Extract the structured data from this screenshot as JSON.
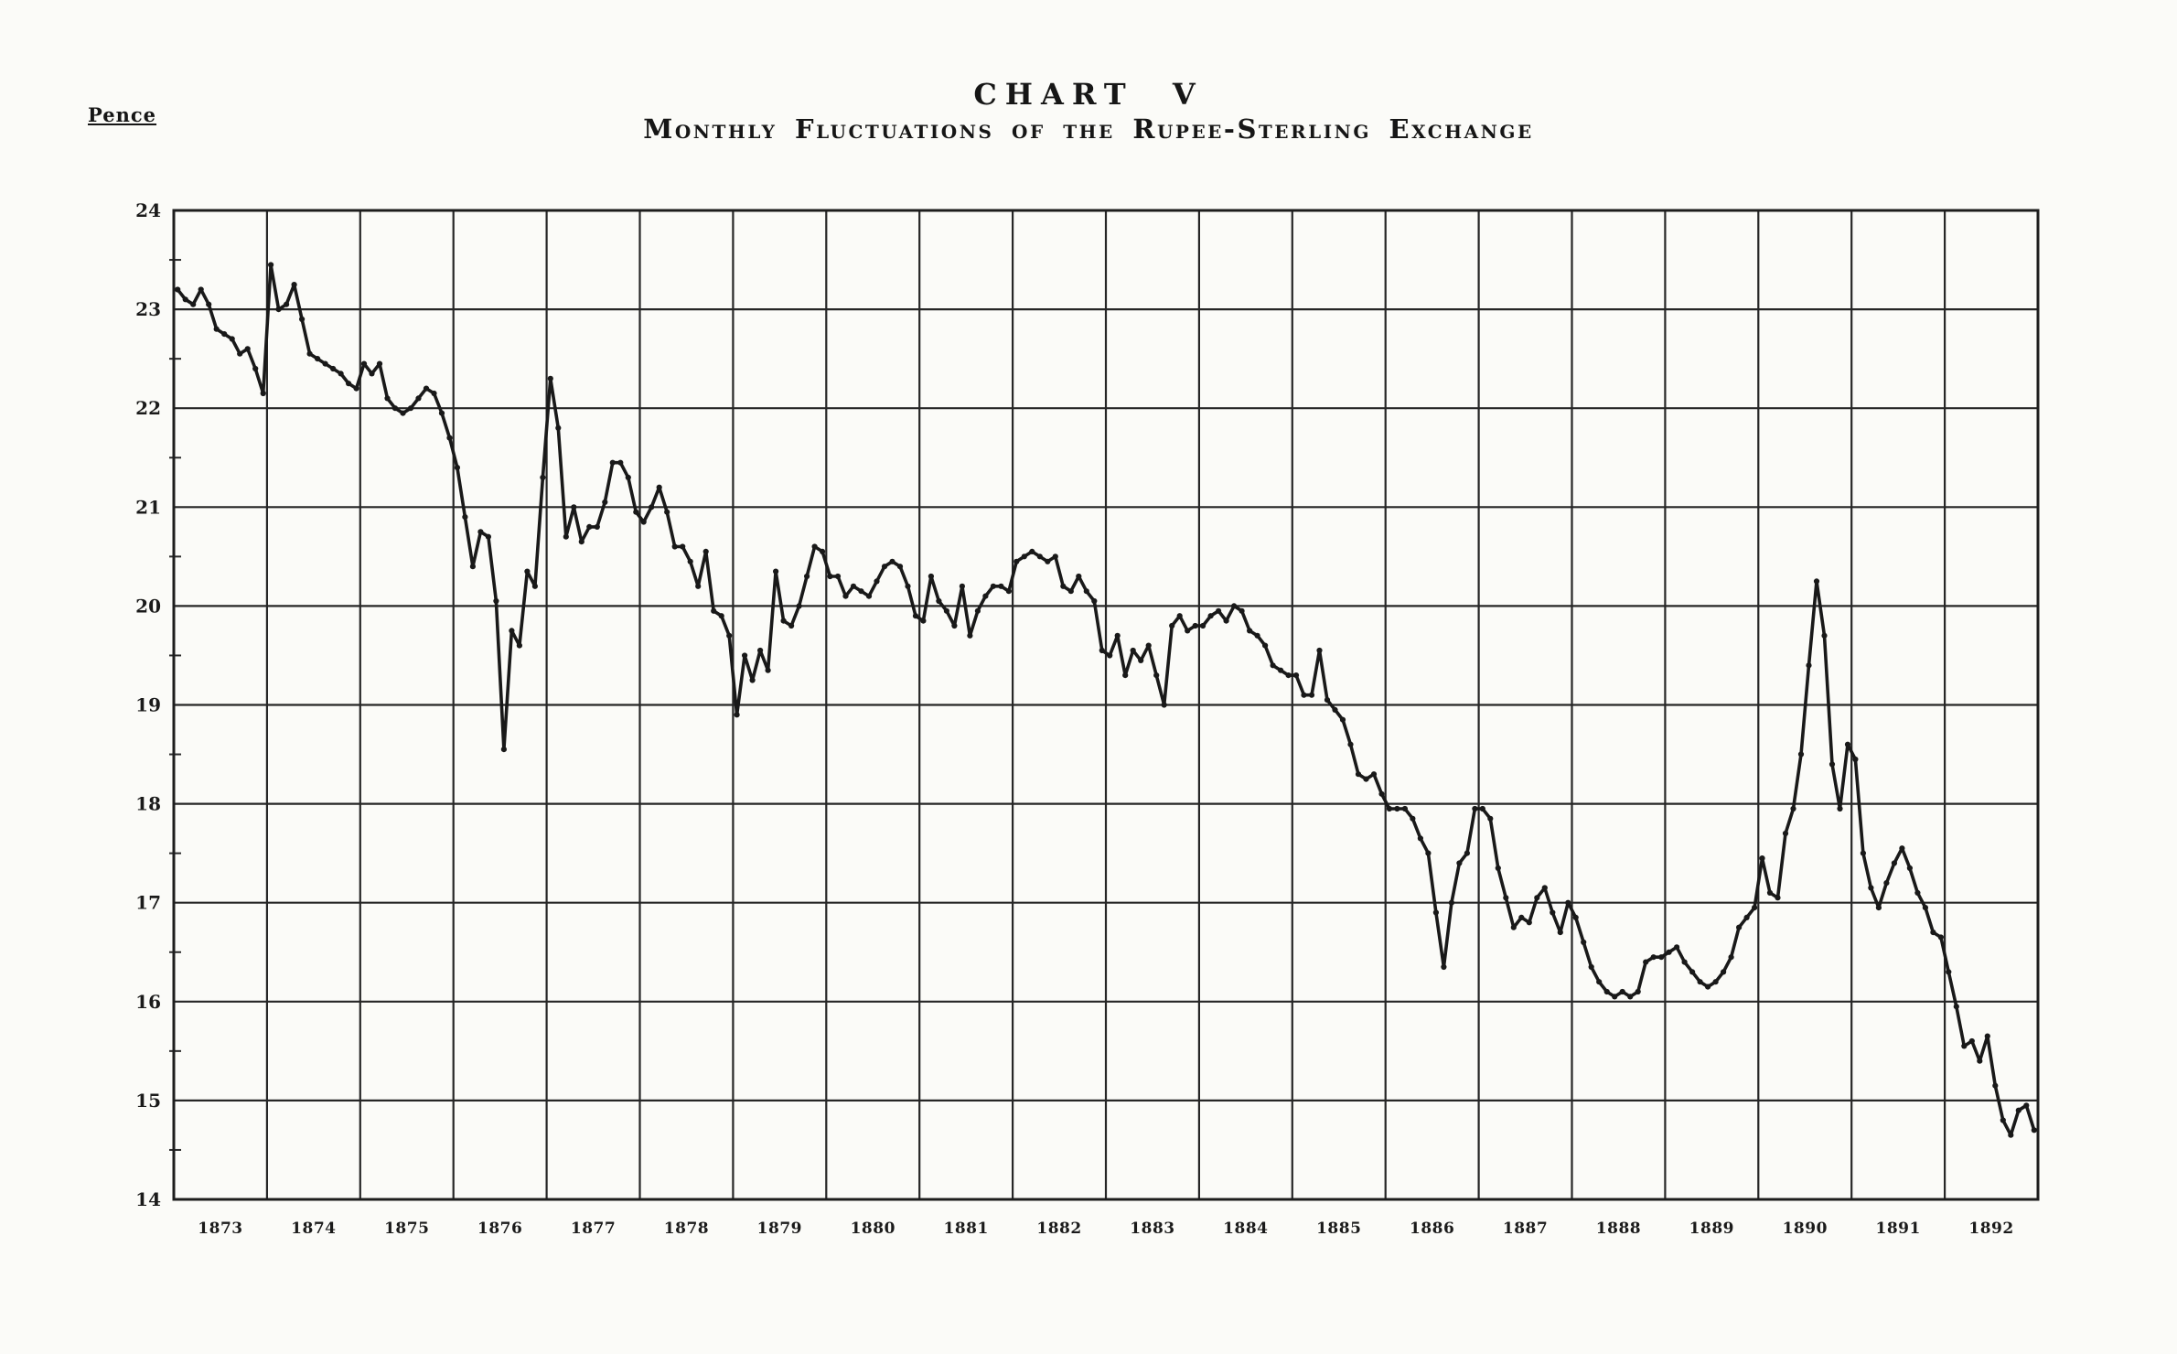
{
  "page": {
    "background": "#fbfbf8",
    "ink": "#1c1c1c"
  },
  "header": {
    "title": "CHART V",
    "subtitle": "Monthly Fluctuations of the Rupee-Sterling Exchange"
  },
  "y_axis": {
    "label": "Pence",
    "max": 24,
    "min": 14,
    "ticks": [
      "24",
      "23",
      "22",
      "21",
      "20",
      "19",
      "18",
      "17",
      "16",
      "15",
      "14"
    ]
  },
  "x_axis": {
    "years": [
      "1873",
      "1874",
      "1875",
      "1876",
      "1877",
      "1878",
      "1879",
      "1880",
      "1881",
      "1882",
      "1883",
      "1884",
      "1885",
      "1886",
      "1887",
      "1888",
      "1889",
      "1890",
      "1891",
      "1892"
    ]
  },
  "chart_data": {
    "type": "line",
    "title": "Monthly Fluctuations of the Rupee-Sterling Exchange",
    "ylabel": "Pence",
    "unit": "pence per rupee",
    "ylim": [
      14,
      24
    ],
    "xlim": [
      "Jan 1873",
      "Dec 1892"
    ],
    "grid": "on",
    "legend": "none",
    "series": [
      {
        "name": "Rupee-sterling exchange rate (monthly, pence per rupee)",
        "by_year": {
          "1873": [
            23.2,
            23.1,
            23.05,
            23.2,
            23.05,
            22.8,
            22.75,
            22.7,
            22.55,
            22.6,
            22.4,
            22.15
          ],
          "1874": [
            23.45,
            23.0,
            23.05,
            23.25,
            22.9,
            22.55,
            22.5,
            22.45,
            22.4,
            22.35,
            22.25,
            22.2
          ],
          "1875": [
            22.45,
            22.35,
            22.45,
            22.1,
            22.0,
            21.95,
            22.0,
            22.1,
            22.2,
            22.15,
            21.95,
            21.7
          ],
          "1876": [
            21.4,
            20.9,
            20.4,
            20.75,
            20.7,
            20.05,
            18.55,
            19.75,
            19.6,
            20.35,
            20.2,
            21.3
          ],
          "1877": [
            22.3,
            21.8,
            20.7,
            21.0,
            20.65,
            20.8,
            20.8,
            21.05,
            21.45,
            21.45,
            21.3,
            20.95
          ],
          "1878": [
            20.85,
            21.0,
            21.2,
            20.95,
            20.6,
            20.6,
            20.45,
            20.2,
            20.55,
            19.95,
            19.9,
            19.7
          ],
          "1879": [
            18.9,
            19.5,
            19.25,
            19.55,
            19.35,
            20.35,
            19.85,
            19.8,
            20.0,
            20.3,
            20.6,
            20.55
          ],
          "1880": [
            20.3,
            20.3,
            20.1,
            20.2,
            20.15,
            20.1,
            20.25,
            20.4,
            20.45,
            20.4,
            20.2,
            19.9
          ],
          "1881": [
            19.85,
            20.3,
            20.05,
            19.95,
            19.8,
            20.2,
            19.7,
            19.95,
            20.1,
            20.2,
            20.2,
            20.15
          ],
          "1882": [
            20.45,
            20.5,
            20.55,
            20.5,
            20.45,
            20.5,
            20.2,
            20.15,
            20.3,
            20.15,
            20.05,
            19.55
          ],
          "1883": [
            19.5,
            19.7,
            19.3,
            19.55,
            19.45,
            19.6,
            19.3,
            19.0,
            19.8,
            19.9,
            19.75,
            19.8
          ],
          "1884": [
            19.8,
            19.9,
            19.95,
            19.85,
            20.0,
            19.95,
            19.75,
            19.7,
            19.6,
            19.4,
            19.35,
            19.3
          ],
          "1885": [
            19.3,
            19.1,
            19.1,
            19.55,
            19.05,
            18.95,
            18.85,
            18.6,
            18.3,
            18.25,
            18.3,
            18.1
          ],
          "1886": [
            17.95,
            17.95,
            17.95,
            17.85,
            17.65,
            17.5,
            16.9,
            16.35,
            17.0,
            17.4,
            17.5,
            17.95
          ],
          "1887": [
            17.95,
            17.85,
            17.35,
            17.05,
            16.75,
            16.85,
            16.8,
            17.05,
            17.15,
            16.9,
            16.7,
            17.0
          ],
          "1888": [
            16.85,
            16.6,
            16.35,
            16.2,
            16.1,
            16.05,
            16.1,
            16.05,
            16.1,
            16.4,
            16.45,
            16.45
          ],
          "1889": [
            16.5,
            16.55,
            16.4,
            16.3,
            16.2,
            16.15,
            16.2,
            16.3,
            16.45,
            16.75,
            16.85,
            16.95
          ],
          "1890": [
            17.45,
            17.1,
            17.05,
            17.7,
            17.95,
            18.5,
            19.4,
            20.25,
            19.7,
            18.4,
            17.95,
            18.6
          ],
          "1891": [
            18.45,
            17.5,
            17.15,
            16.95,
            17.2,
            17.4,
            17.55,
            17.35,
            17.1,
            16.95,
            16.7,
            16.65
          ],
          "1892": [
            16.3,
            15.95,
            15.55,
            15.6,
            15.4,
            15.65,
            15.15,
            14.8,
            14.65,
            14.9,
            14.95,
            14.7
          ]
        }
      }
    ]
  }
}
